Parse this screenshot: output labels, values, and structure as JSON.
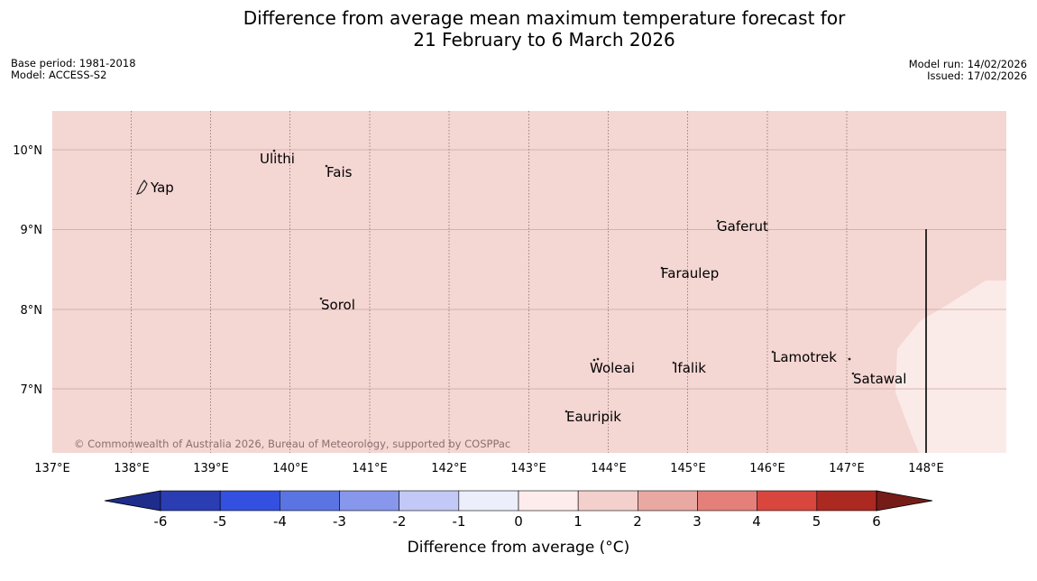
{
  "title": {
    "line1": "Difference from average mean maximum temperature forecast for",
    "line2": "21 February to 6 March 2026"
  },
  "meta_left": {
    "base_period": "Base period: 1981-2018",
    "model": "Model: ACCESS-S2"
  },
  "meta_right": {
    "model_run": "Model run: 14/02/2026",
    "issued": "Issued: 17/02/2026"
  },
  "map": {
    "lat_labels": [
      "10°N",
      "9°N",
      "8°N",
      "7°N"
    ],
    "lon_labels": [
      "137°E",
      "138°E",
      "139°E",
      "140°E",
      "141°E",
      "142°E",
      "143°E",
      "144°E",
      "145°E",
      "146°E",
      "147°E",
      "148°E"
    ],
    "places": [
      "Ulithi",
      "Fais",
      "Yap",
      "Gaferut",
      "Faraulep",
      "Sorol",
      "Lamotrek",
      "Woleai",
      "Ifalik",
      "Satawal",
      "Eauripik"
    ],
    "copyright": "© Commonwealth of Australia 2026, Bureau of Meteorology, supported by COSPPac",
    "main_fill_color": "#f4d6d3",
    "alt_fill_color": "#fbebe8"
  },
  "colorbar": {
    "ticks": [
      "-6",
      "-5",
      "-4",
      "-3",
      "-2",
      "-1",
      "0",
      "1",
      "2",
      "3",
      "4",
      "5",
      "6"
    ],
    "colors": [
      "#1e2c8c",
      "#2a3db3",
      "#3350e0",
      "#5b74e3",
      "#8797ec",
      "#c2c9f6",
      "#eceefc",
      "#fdeceb",
      "#f4d0cd",
      "#eaa8a2",
      "#e48079",
      "#d9463e",
      "#ac2922",
      "#761c18"
    ],
    "label": "Difference from average (°C)"
  }
}
